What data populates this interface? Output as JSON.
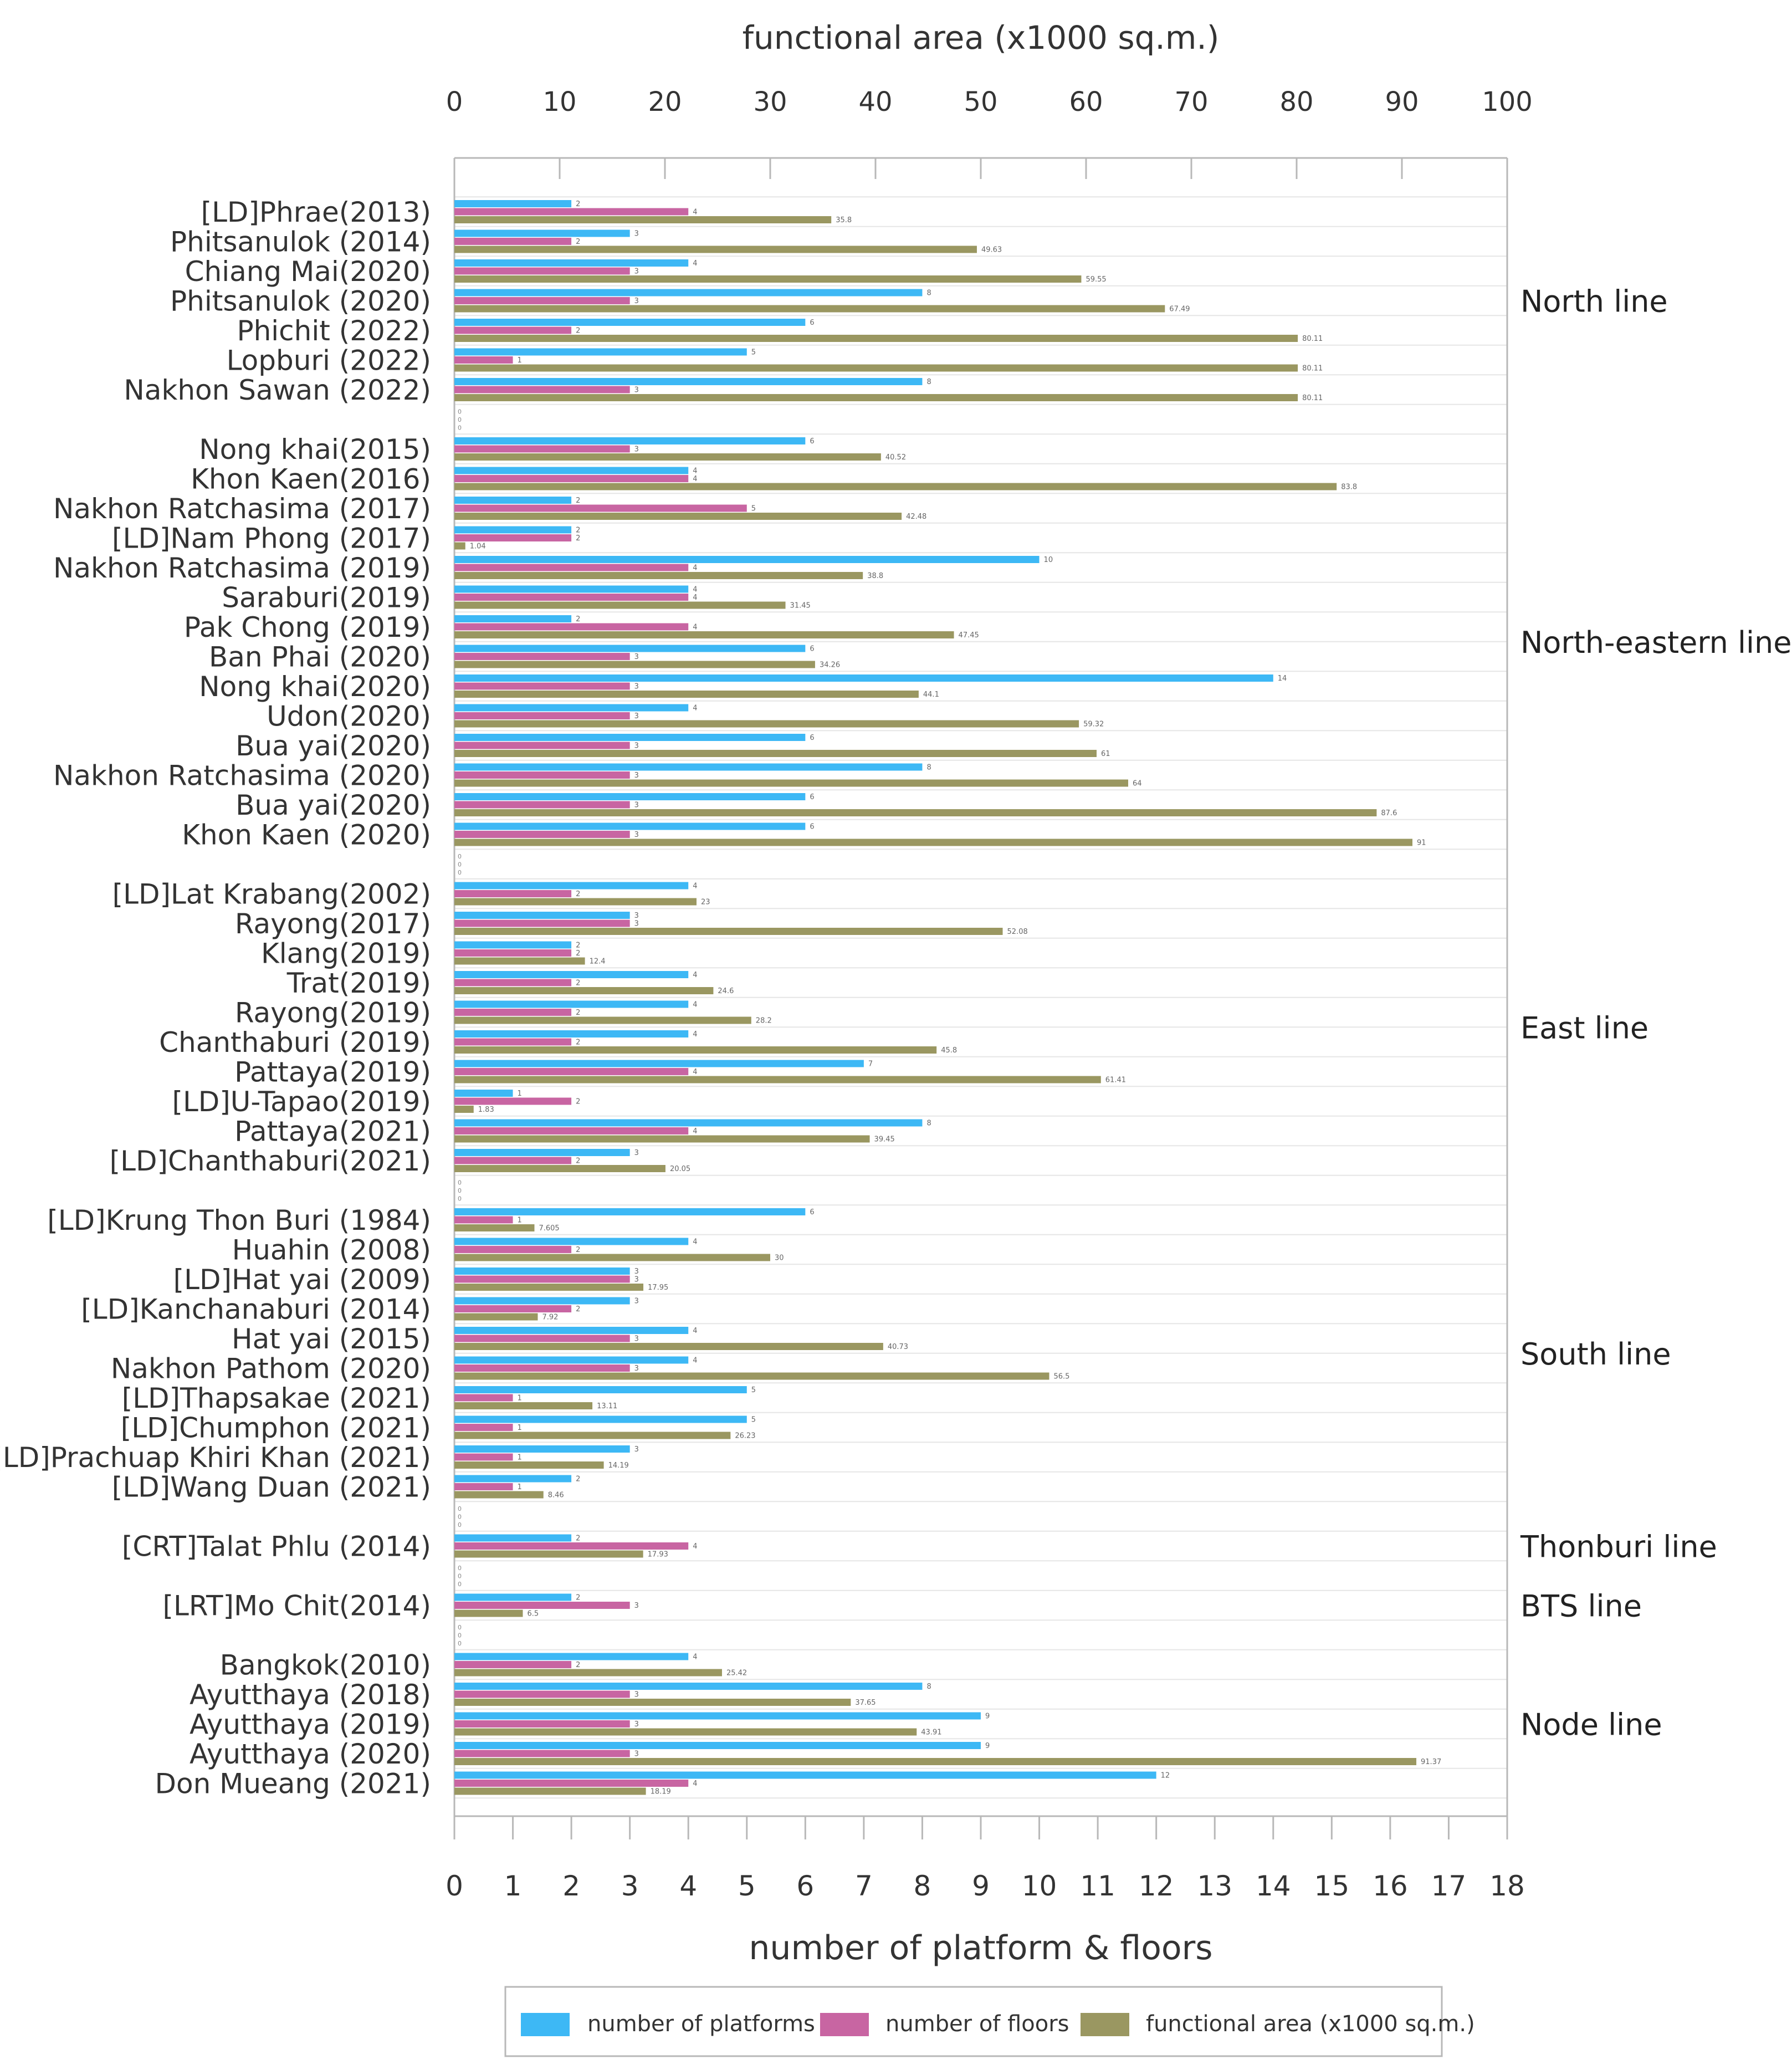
{
  "chart_data": {
    "type": "bar",
    "orientation": "horizontal",
    "top_axis": {
      "label": "functional area (x1000 sq.m.)",
      "range": [
        0,
        100
      ],
      "ticks": [
        "0",
        "10",
        "20",
        "30",
        "40",
        "50",
        "60",
        "70",
        "80",
        "90",
        "100"
      ]
    },
    "bottom_axis": {
      "label": "number of platform & floors",
      "range": [
        0,
        18
      ],
      "ticks": [
        "0",
        "1",
        "2",
        "3",
        "4",
        "5",
        "6",
        "7",
        "8",
        "9",
        "10",
        "11",
        "12",
        "13",
        "14",
        "15",
        "16",
        "17",
        "18"
      ]
    },
    "series": [
      {
        "name": "number of platforms",
        "color": "#3DB8F5",
        "axis": "bottom"
      },
      {
        "name": "number of floors",
        "color": "#C865A2",
        "axis": "bottom"
      },
      {
        "name": "functional area (x1000 sq.m.)",
        "color": "#9A9761",
        "axis": "top"
      }
    ],
    "legend": {
      "position": "bottom"
    },
    "grid": true,
    "groups": [
      {
        "name": "North line",
        "rows": [
          {
            "label": "[LD]Phrae(2013)",
            "platforms": 2,
            "floors": 4,
            "area": 35.8,
            "platforms_label": "2",
            "floors_label": "4",
            "area_label": "35.8"
          },
          {
            "label": "Phitsanulok (2014)",
            "platforms": 3,
            "floors": 2,
            "area": 49.63,
            "platforms_label": "3",
            "floors_label": "2",
            "area_label": "49.63"
          },
          {
            "label": "Chiang Mai(2020)",
            "platforms": 4,
            "floors": 3,
            "area": 59.55,
            "platforms_label": "4",
            "floors_label": "3",
            "area_label": "59.55"
          },
          {
            "label": "Phitsanulok (2020)",
            "platforms": 8,
            "floors": 3,
            "area": 67.49,
            "platforms_label": "8",
            "floors_label": "3",
            "area_label": "67.49"
          },
          {
            "label": "Phichit (2022)",
            "platforms": 6,
            "floors": 2,
            "area": 80.11,
            "platforms_label": "6",
            "floors_label": "2",
            "area_label": "80.11"
          },
          {
            "label": "Lopburi (2022)",
            "platforms": 5,
            "floors": 1,
            "area": 80.11,
            "platforms_label": "5",
            "floors_label": "1",
            "area_label": "80.11"
          },
          {
            "label": "Nakhon Sawan (2022)",
            "platforms": 8,
            "floors": 3,
            "area": 80.11,
            "platforms_label": "8",
            "floors_label": "3",
            "area_label": "80.11"
          }
        ]
      },
      {
        "name": "North-eastern line",
        "rows": [
          {
            "label": "Nong khai(2015)",
            "platforms": 6,
            "floors": 3,
            "area": 40.52,
            "platforms_label": "6",
            "floors_label": "3",
            "area_label": "40.52"
          },
          {
            "label": "Khon Kaen(2016)",
            "platforms": 4,
            "floors": 4,
            "area": 83.8,
            "platforms_label": "4",
            "floors_label": "4",
            "area_label": "83.8"
          },
          {
            "label": "Nakhon Ratchasima (2017)",
            "platforms": 2,
            "floors": 5,
            "area": 42.48,
            "platforms_label": "2",
            "floors_label": "5",
            "area_label": "42.48"
          },
          {
            "label": "[LD]Nam Phong (2017)",
            "platforms": 2,
            "floors": 2,
            "area": 1.04,
            "platforms_label": "2",
            "floors_label": "2",
            "area_label": "1.04"
          },
          {
            "label": "Nakhon Ratchasima (2019)",
            "platforms": 10,
            "floors": 4,
            "area": 38.8,
            "platforms_label": "10",
            "floors_label": "4",
            "area_label": "38.8"
          },
          {
            "label": "Saraburi(2019)",
            "platforms": 4,
            "floors": 4,
            "area": 31.45,
            "platforms_label": "4",
            "floors_label": "4",
            "area_label": "31.45"
          },
          {
            "label": "Pak Chong (2019)",
            "platforms": 2,
            "floors": 4,
            "area": 47.45,
            "platforms_label": "2",
            "floors_label": "4",
            "area_label": "47.45"
          },
          {
            "label": "Ban Phai (2020)",
            "platforms": 6,
            "floors": 3,
            "area": 34.26,
            "platforms_label": "6",
            "floors_label": "3",
            "area_label": "34.26"
          },
          {
            "label": "Nong khai(2020)",
            "platforms": 14,
            "floors": 3,
            "area": 44.1,
            "platforms_label": "14",
            "floors_label": "3",
            "area_label": "44.1"
          },
          {
            "label": "Udon(2020)",
            "platforms": 4,
            "floors": 3,
            "area": 59.32,
            "platforms_label": "4",
            "floors_label": "3",
            "area_label": "59.32"
          },
          {
            "label": "Bua yai(2020)",
            "platforms": 6,
            "floors": 3,
            "area": 61,
            "platforms_label": "6",
            "floors_label": "3",
            "area_label": "61"
          },
          {
            "label": "Nakhon Ratchasima (2020)",
            "platforms": 8,
            "floors": 3,
            "area": 64,
            "platforms_label": "8",
            "floors_label": "3",
            "area_label": "64"
          },
          {
            "label": "Bua yai(2020)",
            "platforms": 6,
            "floors": 3,
            "area": 87.6,
            "platforms_label": "6",
            "floors_label": "3",
            "area_label": "87.6"
          },
          {
            "label": "Khon Kaen (2020)",
            "platforms": 6,
            "floors": 3,
            "area": 91,
            "platforms_label": "6",
            "floors_label": "3",
            "area_label": "91"
          }
        ]
      },
      {
        "name": "East line",
        "rows": [
          {
            "label": "[LD]Lat Krabang(2002)",
            "platforms": 4,
            "floors": 2,
            "area": 23,
            "platforms_label": "4",
            "floors_label": "2",
            "area_label": "23"
          },
          {
            "label": "Rayong(2017)",
            "platforms": 3,
            "floors": 3,
            "area": 52.08,
            "platforms_label": "3",
            "floors_label": "3",
            "area_label": "52.08"
          },
          {
            "label": "Klang(2019)",
            "platforms": 2,
            "floors": 2,
            "area": 12.4,
            "platforms_label": "2",
            "floors_label": "2",
            "area_label": "12.4"
          },
          {
            "label": "Trat(2019)",
            "platforms": 4,
            "floors": 2,
            "area": 24.6,
            "platforms_label": "4",
            "floors_label": "2",
            "area_label": "24.6"
          },
          {
            "label": "Rayong(2019)",
            "platforms": 4,
            "floors": 2,
            "area": 28.2,
            "platforms_label": "4",
            "floors_label": "2",
            "area_label": "28.2"
          },
          {
            "label": "Chanthaburi (2019)",
            "platforms": 4,
            "floors": 2,
            "area": 45.8,
            "platforms_label": "4",
            "floors_label": "2",
            "area_label": "45.8"
          },
          {
            "label": "Pattaya(2019)",
            "platforms": 7,
            "floors": 4,
            "area": 61.41,
            "platforms_label": "7",
            "floors_label": "4",
            "area_label": "61.41"
          },
          {
            "label": "[LD]U-Tapao(2019)",
            "platforms": 1,
            "floors": 2,
            "area": 1.83,
            "platforms_label": "1",
            "floors_label": "2",
            "area_label": "1.83"
          },
          {
            "label": "Pattaya(2021)",
            "platforms": 8,
            "floors": 4,
            "area": 39.45,
            "platforms_label": "8",
            "floors_label": "4",
            "area_label": "39.45"
          },
          {
            "label": "[LD]Chanthaburi(2021)",
            "platforms": 3,
            "floors": 2,
            "area": 20.05,
            "platforms_label": "3",
            "floors_label": "2",
            "area_label": "20.05"
          }
        ]
      },
      {
        "name": "South line",
        "rows": [
          {
            "label": "[LD]Krung Thon Buri (1984)",
            "platforms": 6,
            "floors": 1,
            "area": 7.605,
            "platforms_label": "6",
            "floors_label": "1",
            "area_label": "7.605"
          },
          {
            "label": "Huahin (2008)",
            "platforms": 4,
            "floors": 2,
            "area": 30,
            "platforms_label": "4",
            "floors_label": "2",
            "area_label": "30"
          },
          {
            "label": "[LD]Hat yai (2009)",
            "platforms": 3,
            "floors": 3,
            "area": 17.95,
            "platforms_label": "3",
            "floors_label": "3",
            "area_label": "17.95"
          },
          {
            "label": "[LD]Kanchanaburi (2014)",
            "platforms": 3,
            "floors": 2,
            "area": 7.92,
            "platforms_label": "3",
            "floors_label": "2",
            "area_label": "7.92"
          },
          {
            "label": "Hat yai (2015)",
            "platforms": 4,
            "floors": 3,
            "area": 40.73,
            "platforms_label": "4",
            "floors_label": "3",
            "area_label": "40.73"
          },
          {
            "label": "Nakhon Pathom (2020)",
            "platforms": 4,
            "floors": 3,
            "area": 56.5,
            "platforms_label": "4",
            "floors_label": "3",
            "area_label": "56.5"
          },
          {
            "label": "[LD]Thapsakae (2021)",
            "platforms": 5,
            "floors": 1,
            "area": 13.11,
            "platforms_label": "5",
            "floors_label": "1",
            "area_label": "13.11"
          },
          {
            "label": "[LD]Chumphon (2021)",
            "platforms": 5,
            "floors": 1,
            "area": 26.23,
            "platforms_label": "5",
            "floors_label": "1",
            "area_label": "26.23"
          },
          {
            "label": "[LD]Prachuap Khiri Khan (2021)",
            "platforms": 3,
            "floors": 1,
            "area": 14.19,
            "platforms_label": "3",
            "floors_label": "1",
            "area_label": "14.19"
          },
          {
            "label": "[LD]Wang Duan (2021)",
            "platforms": 2,
            "floors": 1,
            "area": 8.46,
            "platforms_label": "2",
            "floors_label": "1",
            "area_label": "8.46"
          }
        ]
      },
      {
        "name": "Thonburi line",
        "rows": [
          {
            "label": "[CRT]Talat Phlu (2014)",
            "platforms": 2,
            "floors": 4,
            "area": 17.93,
            "platforms_label": "2",
            "floors_label": "4",
            "area_label": "17.93"
          }
        ]
      },
      {
        "name": "BTS line",
        "rows": [
          {
            "label": "[LRT]Mo Chit(2014)",
            "platforms": 2,
            "floors": 3,
            "area": 6.5,
            "platforms_label": "2",
            "floors_label": "3",
            "area_label": "6.5"
          }
        ]
      },
      {
        "name": "Node line",
        "rows": [
          {
            "label": "Bangkok(2010)",
            "platforms": 4,
            "floors": 2,
            "area": 25.42,
            "platforms_label": "4",
            "floors_label": "2",
            "area_label": "25.42"
          },
          {
            "label": "Ayutthaya (2018)",
            "platforms": 8,
            "floors": 3,
            "area": 37.65,
            "platforms_label": "8",
            "floors_label": "3",
            "area_label": "37.65"
          },
          {
            "label": "Ayutthaya (2019)",
            "platforms": 9,
            "floors": 3,
            "area": 43.91,
            "platforms_label": "9",
            "floors_label": "3",
            "area_label": "43.91"
          },
          {
            "label": "Ayutthaya (2020)",
            "platforms": 9,
            "floors": 3,
            "area": 91.37,
            "platforms_label": "9",
            "floors_label": "3",
            "area_label": "91.37"
          },
          {
            "label": "Don Mueang (2021)",
            "platforms": 12,
            "floors": 4,
            "area": 18.19,
            "platforms_label": "12",
            "floors_label": "4",
            "area_label": "18.19"
          }
        ]
      }
    ],
    "separator_labels": [
      "0",
      "0",
      "0"
    ]
  }
}
